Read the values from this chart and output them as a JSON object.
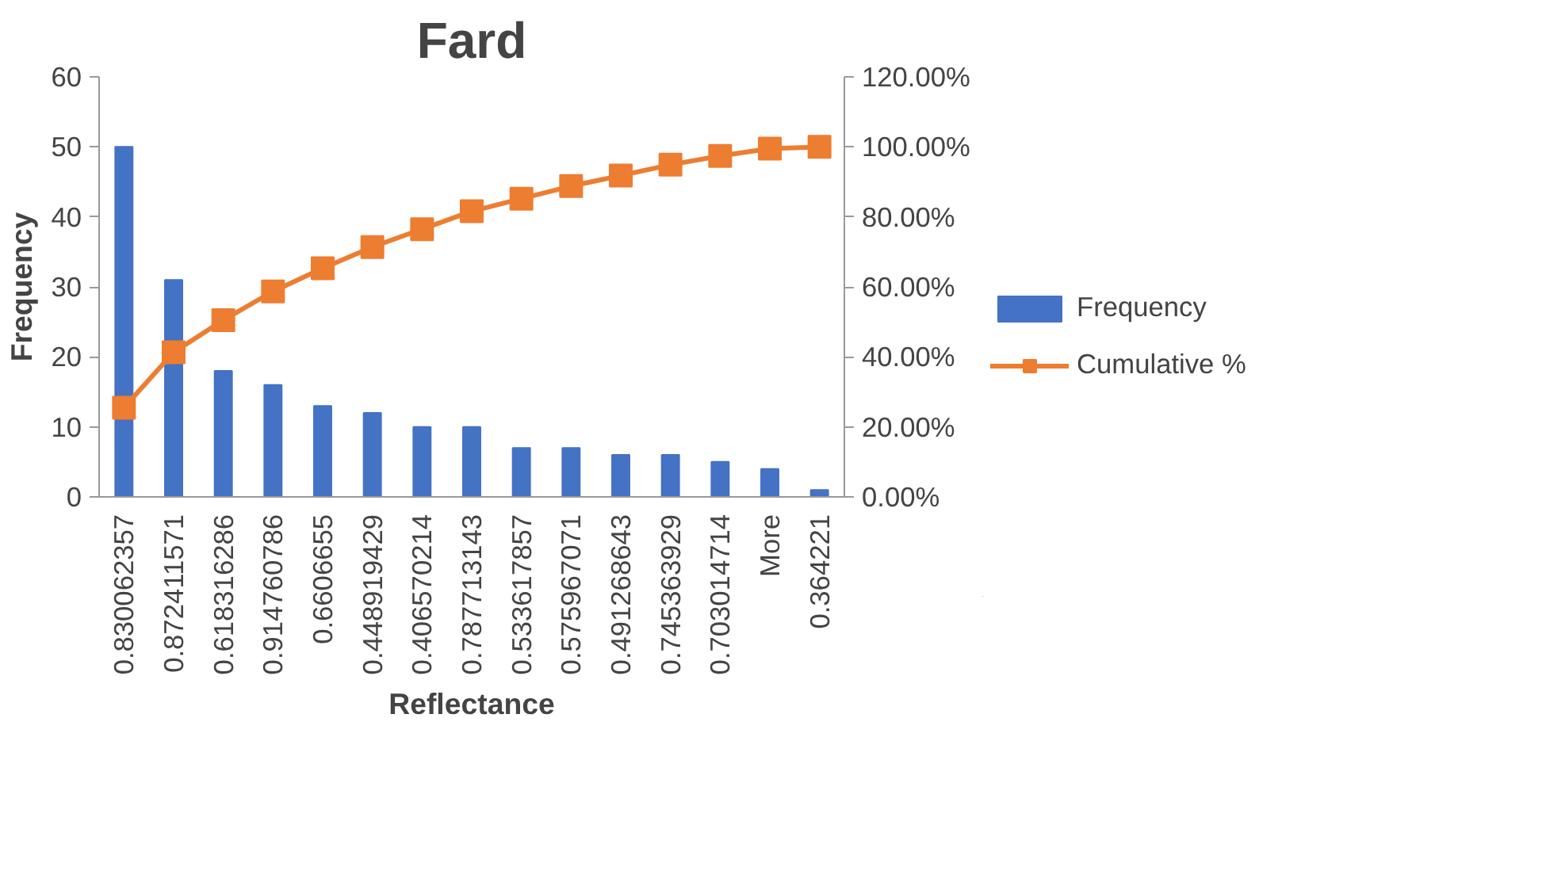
{
  "chart_data": {
    "type": "bar",
    "title": "Fard",
    "xlabel": "Reflectance",
    "ylabel": "Frequency",
    "categories": [
      "0.830062357",
      "0.872411571",
      "0.618316286",
      "0.914760786",
      "0.6606655",
      "0.448919429",
      "0.406570214",
      "0.787713143",
      "0.533617857",
      "0.575967071",
      "0.491268643",
      "0.745363929",
      "0.703014714",
      "More",
      "0.364221"
    ],
    "series": [
      {
        "name": "Frequency",
        "color": "#4472c4",
        "values": [
          50,
          31,
          18,
          16,
          13,
          12,
          10,
          10,
          7,
          7,
          6,
          6,
          5,
          4,
          1
        ]
      },
      {
        "name": "Cumulative %",
        "type": "line",
        "axis": "y2",
        "color": "#ed7d31",
        "marker": "square",
        "values": [
          25.5,
          41.3,
          50.5,
          58.7,
          65.3,
          71.4,
          76.5,
          81.6,
          85.2,
          88.8,
          91.8,
          94.9,
          97.4,
          99.5,
          100
        ]
      }
    ],
    "ylim": [
      0,
      60
    ],
    "yticks": [
      0,
      10,
      20,
      30,
      40,
      50,
      60
    ],
    "y2lim": [
      0,
      120
    ],
    "y2ticks": [
      {
        "value": 0,
        "label": "0.00%"
      },
      {
        "value": 20,
        "label": "20.00%"
      },
      {
        "value": 40,
        "label": "40.00%"
      },
      {
        "value": 60,
        "label": "60.00%"
      },
      {
        "value": 80,
        "label": "80.00%"
      },
      {
        "value": 100,
        "label": "100.00%"
      },
      {
        "value": 120,
        "label": "120.00%"
      }
    ],
    "legend": "right",
    "grid": false
  }
}
